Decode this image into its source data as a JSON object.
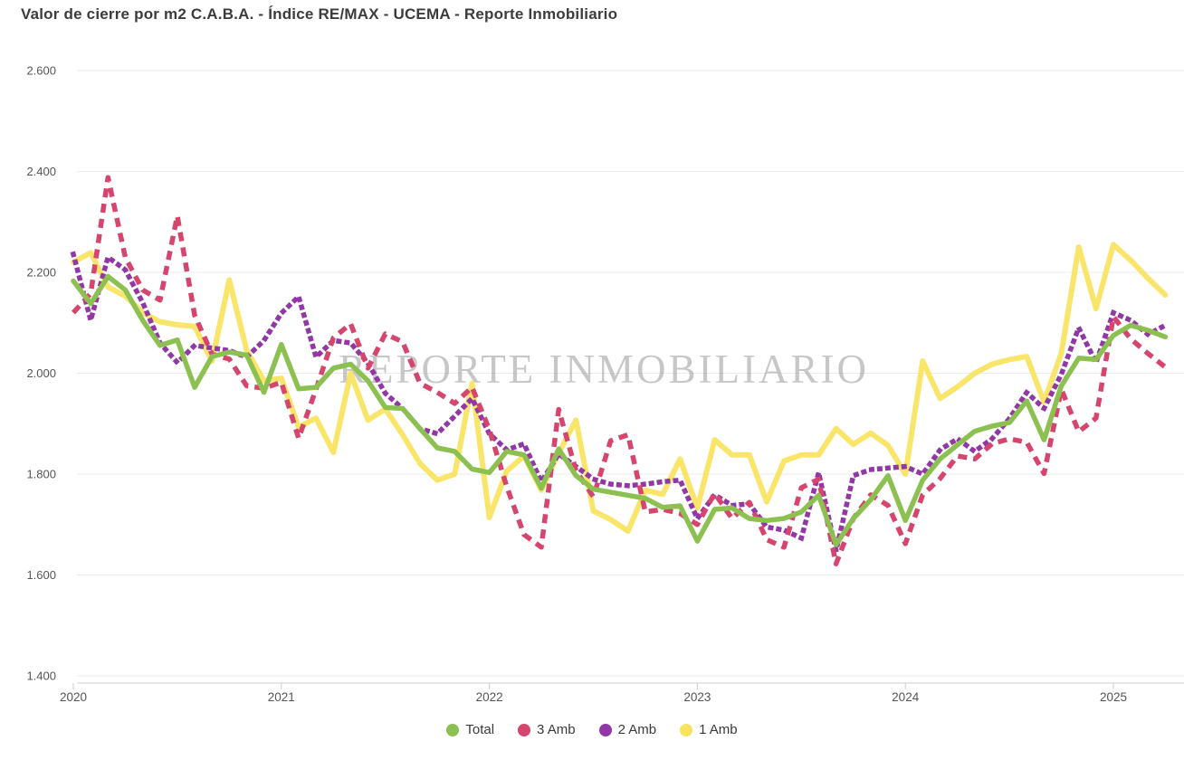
{
  "title": "Valor de cierre por m2 C.A.B.A. - Índice RE/MAX - UCEMA - Reporte Inmobiliario",
  "chart_data": {
    "type": "line",
    "title": "Valor de cierre por m2 C.A.B.A. - Índice RE/MAX - UCEMA - Reporte Inmobiliario",
    "watermark": "REPORTE INMOBILIARIO",
    "x_unit": "month",
    "x_start": "2020-01",
    "x_end": "2025-04",
    "x_tick_labels": [
      "2020",
      "2021",
      "2022",
      "2023",
      "2024",
      "2025"
    ],
    "y_tick_labels": [
      "2.600",
      "2.400",
      "2.200",
      "2.000",
      "1.800",
      "1.600",
      "1.400"
    ],
    "ylim": [
      1400,
      2600
    ],
    "y_step": 200,
    "grid": true,
    "legend_position": "bottom",
    "axis_color": "#cccccc",
    "grid_color": "#ebebeb",
    "label_color": "#555555",
    "watermark_color": "#9a9a9a",
    "series": [
      {
        "name": "Total",
        "color": "#8CC152",
        "style": "solid",
        "values": [
          2183,
          2138,
          2192,
          2165,
          2105,
          2055,
          2066,
          1972,
          2033,
          2042,
          2036,
          1962,
          2057,
          1969,
          1972,
          2010,
          2018,
          1985,
          1932,
          1930,
          1890,
          1852,
          1845,
          1810,
          1803,
          1845,
          1838,
          1772,
          1850,
          1797,
          1770,
          1764,
          1758,
          1752,
          1734,
          1737,
          1667,
          1730,
          1733,
          1712,
          1708,
          1712,
          1725,
          1758,
          1660,
          1712,
          1749,
          1797,
          1708,
          1788,
          1830,
          1858,
          1885,
          1895,
          1902,
          1945,
          1868,
          1975,
          2030,
          2027,
          2075,
          2095,
          2085,
          2072
        ]
      },
      {
        "name": "3 Amb",
        "color": "#D6456D",
        "style": "dashed",
        "values": [
          2120,
          2158,
          2388,
          2230,
          2165,
          2145,
          2312,
          2115,
          2038,
          2028,
          1975,
          1970,
          1982,
          1871,
          1968,
          2070,
          2098,
          2010,
          2078,
          2062,
          1980,
          1962,
          1940,
          1972,
          1888,
          1775,
          1680,
          1655,
          1928,
          1807,
          1755,
          1866,
          1878,
          1725,
          1730,
          1722,
          1700,
          1762,
          1712,
          1744,
          1670,
          1655,
          1773,
          1790,
          1622,
          1712,
          1759,
          1738,
          1662,
          1759,
          1791,
          1836,
          1830,
          1860,
          1870,
          1863,
          1801,
          1968,
          1884,
          1911,
          2112,
          2068,
          2039,
          2012
        ]
      },
      {
        "name": "2 Amb",
        "color": "#9238A6",
        "style": "dotted",
        "values": [
          2236,
          2105,
          2230,
          2205,
          2140,
          2060,
          2021,
          2055,
          2050,
          2045,
          2032,
          2065,
          2119,
          2152,
          2032,
          2065,
          2060,
          2020,
          1960,
          1930,
          1890,
          1880,
          1915,
          1950,
          1880,
          1848,
          1860,
          1785,
          1840,
          1815,
          1790,
          1780,
          1777,
          1780,
          1785,
          1788,
          1712,
          1759,
          1738,
          1741,
          1695,
          1689,
          1673,
          1803,
          1648,
          1797,
          1809,
          1812,
          1815,
          1800,
          1848,
          1870,
          1845,
          1870,
          1910,
          1962,
          1930,
          1998,
          2090,
          2021,
          2120,
          2105,
          2077,
          2095
        ]
      },
      {
        "name": "1 Amb",
        "color": "#F7E35C",
        "style": "solid",
        "values": [
          2220,
          2239,
          2171,
          2153,
          2120,
          2102,
          2096,
          2093,
          2024,
          2185,
          2045,
          1985,
          1990,
          1893,
          1911,
          1843,
          2000,
          1907,
          1929,
          1878,
          1821,
          1788,
          1800,
          1980,
          1714,
          1806,
          1836,
          1768,
          1842,
          1907,
          1727,
          1710,
          1687,
          1768,
          1760,
          1830,
          1733,
          1868,
          1838,
          1838,
          1745,
          1826,
          1838,
          1838,
          1890,
          1859,
          1881,
          1857,
          1800,
          2024,
          1950,
          1973,
          2000,
          2018,
          2027,
          2033,
          1943,
          2040,
          2250,
          2128,
          2255,
          2224,
          2188,
          2155
        ]
      }
    ],
    "legend": [
      {
        "label": "Total",
        "color": "#8CC152"
      },
      {
        "label": "3 Amb",
        "color": "#D6456D"
      },
      {
        "label": "2 Amb",
        "color": "#9238A6"
      },
      {
        "label": "1 Amb",
        "color": "#F7E35C"
      }
    ]
  }
}
